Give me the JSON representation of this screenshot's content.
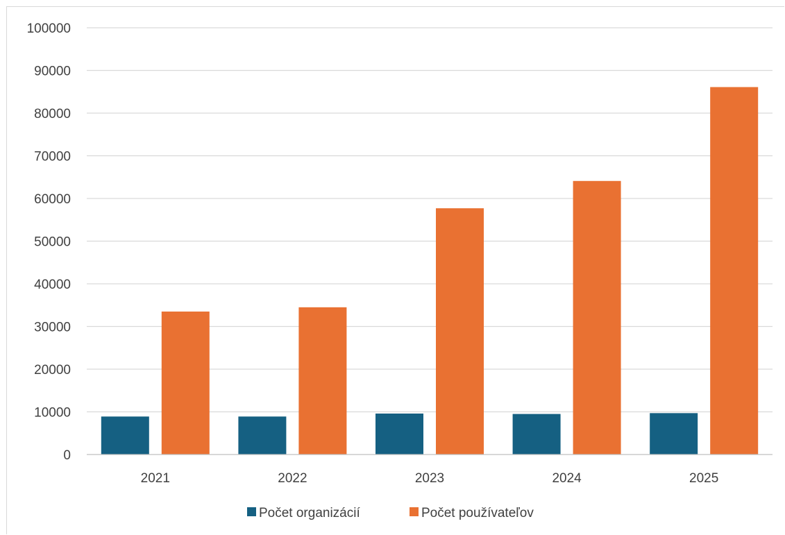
{
  "chart_data": {
    "type": "bar",
    "title": "",
    "xlabel": "",
    "ylabel": "",
    "categories": [
      "2021",
      "2022",
      "2023",
      "2024",
      "2025"
    ],
    "ylim": [
      0,
      100000
    ],
    "yticks": [
      0,
      10000,
      20000,
      30000,
      40000,
      50000,
      60000,
      70000,
      80000,
      90000,
      100000
    ],
    "grid": true,
    "legend_position": "bottom",
    "series": [
      {
        "name": "Počet organizácií",
        "color": "#156082",
        "values": [
          8900,
          8900,
          9600,
          9500,
          9700
        ]
      },
      {
        "name": "Počet používateľov",
        "color": "#E97132",
        "values": [
          33500,
          34500,
          57700,
          64100,
          86100
        ]
      }
    ]
  }
}
